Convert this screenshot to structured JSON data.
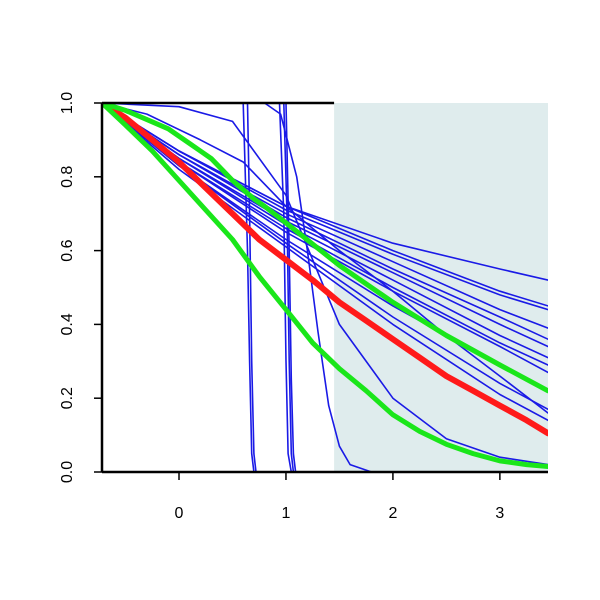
{
  "chart_data": {
    "type": "line",
    "title": "",
    "xlabel": "",
    "ylabel": "",
    "xlim": [
      -0.72,
      3.45
    ],
    "ylim": [
      0.0,
      1.0
    ],
    "x_ticks": [
      0,
      1,
      2,
      3
    ],
    "x_tick_labels": [
      "0",
      "1",
      "2",
      "3"
    ],
    "y_ticks": [
      0.0,
      0.2,
      0.4,
      0.6,
      0.8,
      1.0
    ],
    "y_tick_labels": [
      "0.0",
      "0.2",
      "0.4",
      "0.6",
      "0.8",
      "1.0"
    ],
    "grid": false,
    "legend": false,
    "shaded_region": {
      "x_start": 1.45,
      "x_end": 3.45,
      "color": "#dfeced"
    },
    "colors": {
      "thin": "#1a1ae6",
      "red": "#ff1a1a",
      "green": "#1ae61a",
      "axis": "#000000"
    },
    "series": [
      {
        "style": "thin",
        "x": [
          -0.72,
          0.64,
          0.66,
          0.68,
          0.7,
          0.72
        ],
        "y": [
          1.0,
          1.0,
          0.7,
          0.3,
          0.05,
          0.0
        ]
      },
      {
        "style": "thin",
        "x": [
          -0.72,
          0.6,
          0.64,
          0.66,
          0.68,
          0.7
        ],
        "y": [
          1.0,
          1.0,
          0.6,
          0.3,
          0.05,
          0.0
        ]
      },
      {
        "style": "thin",
        "x": [
          -0.72,
          0.94,
          0.98,
          1.0,
          1.02,
          1.05
        ],
        "y": [
          1.0,
          1.0,
          0.7,
          0.3,
          0.05,
          0.0
        ]
      },
      {
        "style": "thin",
        "x": [
          -0.72,
          0.98,
          1.01,
          1.03,
          1.05,
          1.07
        ],
        "y": [
          1.0,
          1.0,
          0.7,
          0.3,
          0.05,
          0.0
        ]
      },
      {
        "style": "thin",
        "x": [
          -0.72,
          1.0,
          1.03,
          1.05,
          1.07,
          1.09
        ],
        "y": [
          1.0,
          1.0,
          0.6,
          0.25,
          0.05,
          0.0
        ]
      },
      {
        "style": "thin",
        "x": [
          -0.72,
          0.8,
          0.95,
          1.1,
          1.2,
          1.3,
          1.4,
          1.5,
          1.6,
          1.8
        ],
        "y": [
          1.0,
          1.0,
          0.97,
          0.8,
          0.6,
          0.38,
          0.18,
          0.07,
          0.02,
          0.0
        ]
      },
      {
        "style": "thin",
        "x": [
          -0.72,
          0.0,
          0.5,
          1.0,
          1.5,
          2.0,
          2.5,
          3.0,
          3.45
        ],
        "y": [
          1.0,
          0.99,
          0.95,
          0.75,
          0.4,
          0.2,
          0.09,
          0.04,
          0.02
        ]
      },
      {
        "style": "thin",
        "x": [
          -0.72,
          -0.3,
          0.2,
          0.6,
          1.0,
          1.5,
          2.0,
          2.5,
          3.0,
          3.45
        ],
        "y": [
          1.0,
          0.97,
          0.9,
          0.84,
          0.72,
          0.6,
          0.49,
          0.37,
          0.26,
          0.16
        ]
      },
      {
        "style": "thin",
        "x": [
          -0.72,
          0.0,
          1.0,
          2.0,
          3.0,
          3.45
        ],
        "y": [
          1.0,
          0.87,
          0.72,
          0.62,
          0.55,
          0.52
        ]
      },
      {
        "style": "thin",
        "x": [
          -0.72,
          0.0,
          1.0,
          2.0,
          3.0,
          3.45
        ],
        "y": [
          1.0,
          0.87,
          0.72,
          0.6,
          0.49,
          0.45
        ]
      },
      {
        "style": "thin",
        "x": [
          -0.72,
          0.0,
          1.0,
          2.0,
          3.0,
          3.45
        ],
        "y": [
          1.0,
          0.87,
          0.71,
          0.59,
          0.48,
          0.44
        ]
      },
      {
        "style": "thin",
        "x": [
          -0.72,
          0.0,
          1.0,
          2.0,
          3.0,
          3.45
        ],
        "y": [
          1.0,
          0.86,
          0.7,
          0.57,
          0.44,
          0.39
        ]
      },
      {
        "style": "thin",
        "x": [
          -0.72,
          0.0,
          1.0,
          2.0,
          3.0,
          3.45
        ],
        "y": [
          1.0,
          0.86,
          0.69,
          0.55,
          0.42,
          0.36
        ]
      },
      {
        "style": "thin",
        "x": [
          -0.72,
          0.0,
          1.0,
          2.0,
          3.0,
          3.45
        ],
        "y": [
          1.0,
          0.85,
          0.68,
          0.54,
          0.4,
          0.34
        ]
      },
      {
        "style": "thin",
        "x": [
          -0.72,
          0.0,
          1.0,
          2.0,
          3.0,
          3.45
        ],
        "y": [
          1.0,
          0.85,
          0.67,
          0.52,
          0.37,
          0.31
        ]
      },
      {
        "style": "thin",
        "x": [
          -0.72,
          0.0,
          1.0,
          2.0,
          3.0,
          3.45
        ],
        "y": [
          1.0,
          0.84,
          0.66,
          0.5,
          0.35,
          0.29
        ]
      },
      {
        "style": "thin",
        "x": [
          -0.72,
          0.0,
          1.0,
          2.0,
          3.0,
          3.45
        ],
        "y": [
          1.0,
          0.84,
          0.65,
          0.49,
          0.34,
          0.27
        ]
      },
      {
        "style": "thin",
        "x": [
          -0.72,
          0.0,
          1.0,
          2.0,
          3.0,
          3.45
        ],
        "y": [
          1.0,
          0.83,
          0.63,
          0.45,
          0.29,
          0.22
        ]
      },
      {
        "style": "thin",
        "x": [
          -0.72,
          0.0,
          1.0,
          2.0,
          3.0,
          3.45
        ],
        "y": [
          1.0,
          0.83,
          0.62,
          0.42,
          0.24,
          0.17
        ]
      },
      {
        "style": "thin",
        "x": [
          -0.72,
          0.0,
          1.0,
          2.0,
          3.0,
          3.45
        ],
        "y": [
          1.0,
          0.82,
          0.61,
          0.4,
          0.21,
          0.14
        ]
      },
      {
        "style": "red",
        "x": [
          -0.72,
          -0.5,
          -0.25,
          0.0,
          0.25,
          0.5,
          0.75,
          1.0,
          1.25,
          1.5,
          1.75,
          2.0,
          2.25,
          2.5,
          2.75,
          3.0,
          3.25,
          3.45
        ],
        "y": [
          1.0,
          0.96,
          0.9,
          0.84,
          0.77,
          0.7,
          0.63,
          0.575,
          0.52,
          0.46,
          0.41,
          0.36,
          0.31,
          0.26,
          0.22,
          0.18,
          0.14,
          0.105
        ]
      },
      {
        "style": "green",
        "x": [
          -0.72,
          -0.5,
          -0.3,
          -0.1,
          0.0,
          0.1,
          0.2,
          0.3,
          0.4,
          0.5,
          0.6,
          0.7,
          0.8,
          1.0,
          1.5,
          2.0,
          2.5,
          3.0,
          3.45
        ],
        "y": [
          1.0,
          0.98,
          0.955,
          0.93,
          0.91,
          0.89,
          0.87,
          0.85,
          0.82,
          0.79,
          0.765,
          0.74,
          0.72,
          0.675,
          0.56,
          0.46,
          0.37,
          0.29,
          0.22
        ]
      },
      {
        "style": "green",
        "x": [
          -0.72,
          -0.5,
          -0.25,
          0.0,
          0.25,
          0.5,
          0.75,
          1.0,
          1.25,
          1.5,
          1.75,
          2.0,
          2.25,
          2.5,
          2.75,
          3.0,
          3.25,
          3.45
        ],
        "y": [
          1.0,
          0.94,
          0.87,
          0.79,
          0.71,
          0.63,
          0.53,
          0.44,
          0.35,
          0.28,
          0.22,
          0.155,
          0.11,
          0.075,
          0.05,
          0.03,
          0.02,
          0.015
        ]
      }
    ]
  }
}
